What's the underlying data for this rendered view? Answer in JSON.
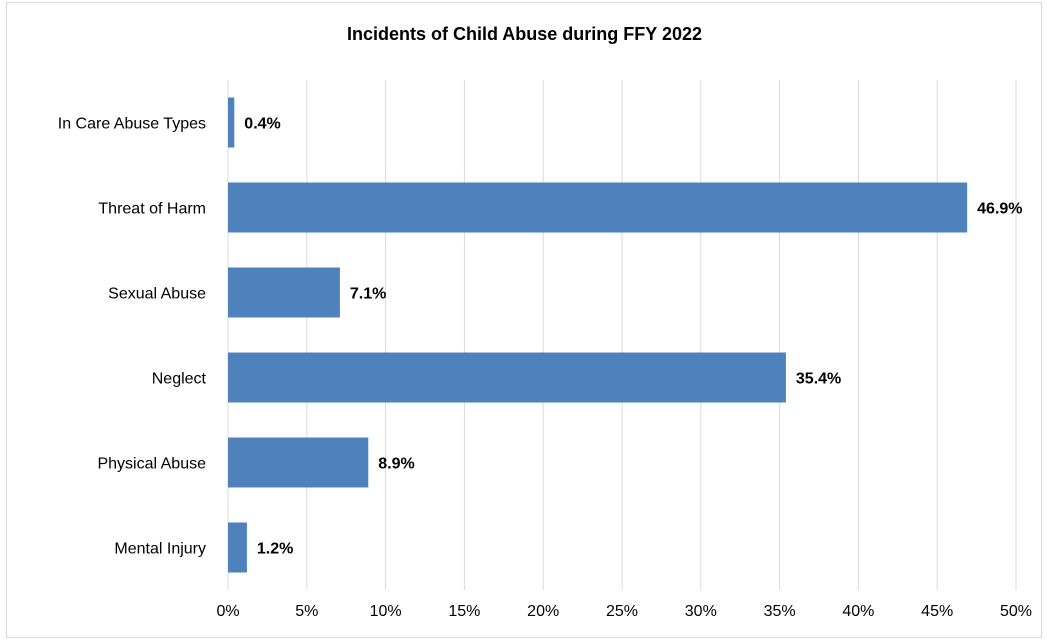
{
  "chart_data": {
    "type": "bar",
    "orientation": "horizontal",
    "title": "Incidents of Child Abuse during FFY 2022",
    "categories": [
      "In Care Abuse Types",
      "Threat of Harm",
      "Sexual Abuse",
      "Neglect",
      "Physical Abuse",
      "Mental Injury"
    ],
    "values": [
      0.4,
      46.9,
      7.1,
      35.4,
      8.9,
      1.2
    ],
    "data_labels": [
      "0.4%",
      "46.9%",
      "7.1%",
      "35.4%",
      "8.9%",
      "1.2%"
    ],
    "x_ticks": [
      "0%",
      "5%",
      "10%",
      "15%",
      "20%",
      "25%",
      "30%",
      "35%",
      "40%",
      "45%",
      "50%"
    ],
    "xlim": [
      0,
      50
    ],
    "xlabel": "",
    "ylabel": "",
    "grid": "vertical",
    "legend": "none",
    "colors": {
      "bar": "#4f81bd",
      "grid": "#d9d9d9",
      "border": "#d9d9d9",
      "text": "#000000"
    }
  }
}
